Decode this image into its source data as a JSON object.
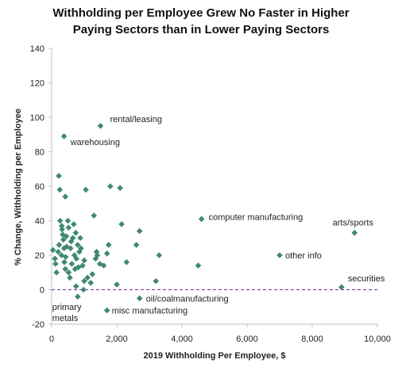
{
  "chart_data": {
    "type": "scatter",
    "title_lines": [
      "Withholding per Employee Grew No Faster in Higher",
      "Paying Sectors than in Lower Paying Sectors"
    ],
    "xlabel": "2019 Withholding  Per Employee, $",
    "ylabel": "% Change, Withholding per Employee",
    "xlim": [
      0,
      10000
    ],
    "ylim": [
      -20,
      140
    ],
    "xticks": [
      0,
      2000,
      4000,
      6000,
      8000,
      10000
    ],
    "xtick_labels": [
      "0",
      "2,000",
      "4,000",
      "6,000",
      "8,000",
      "10,000"
    ],
    "yticks": [
      -20,
      0,
      20,
      40,
      60,
      80,
      100,
      120,
      140
    ],
    "ytick_labels": [
      "-20",
      "0",
      "20",
      "40",
      "60",
      "80",
      "100",
      "120",
      "140"
    ],
    "grid": false,
    "reference_line": {
      "y": 0,
      "style": "dashed",
      "color": "#7030a0"
    },
    "marker_color": "#3f8a6c",
    "points": [
      [
        1500,
        95
      ],
      [
        380,
        89
      ],
      [
        220,
        66
      ],
      [
        250,
        58
      ],
      [
        420,
        54
      ],
      [
        1050,
        58
      ],
      [
        1800,
        60
      ],
      [
        2100,
        59
      ],
      [
        1300,
        43
      ],
      [
        4600,
        41
      ],
      [
        9300,
        33
      ],
      [
        7000,
        20
      ],
      [
        8900,
        1.5
      ],
      [
        2700,
        -5
      ],
      [
        1700,
        -12
      ],
      [
        4500,
        14
      ],
      [
        3200,
        5
      ],
      [
        3300,
        20
      ],
      [
        2600,
        26
      ],
      [
        2700,
        34
      ],
      [
        2150,
        38
      ],
      [
        1750,
        26
      ],
      [
        1700,
        21
      ],
      [
        1600,
        14
      ],
      [
        1400,
        20
      ],
      [
        1380,
        22
      ],
      [
        1350,
        18
      ],
      [
        1480,
        15
      ],
      [
        1250,
        9
      ],
      [
        1200,
        4
      ],
      [
        1100,
        7
      ],
      [
        1000,
        17
      ],
      [
        950,
        14
      ],
      [
        1000,
        5
      ],
      [
        980,
        0
      ],
      [
        800,
        -4
      ],
      [
        750,
        2
      ],
      [
        40,
        23
      ],
      [
        100,
        18
      ],
      [
        120,
        15
      ],
      [
        150,
        10
      ],
      [
        200,
        22
      ],
      [
        230,
        26
      ],
      [
        260,
        40
      ],
      [
        300,
        20
      ],
      [
        320,
        35
      ],
      [
        340,
        32
      ],
      [
        360,
        29
      ],
      [
        380,
        24
      ],
      [
        390,
        16
      ],
      [
        420,
        12
      ],
      [
        430,
        19
      ],
      [
        460,
        25
      ],
      [
        500,
        40
      ],
      [
        520,
        10
      ],
      [
        560,
        7
      ],
      [
        580,
        24
      ],
      [
        600,
        28
      ],
      [
        620,
        15
      ],
      [
        650,
        30
      ],
      [
        680,
        38
      ],
      [
        700,
        20
      ],
      [
        720,
        12
      ],
      [
        740,
        33
      ],
      [
        760,
        18
      ],
      [
        800,
        26
      ],
      [
        820,
        13
      ],
      [
        850,
        22
      ],
      [
        880,
        30
      ],
      [
        900,
        24
      ],
      [
        520,
        36
      ],
      [
        310,
        37
      ],
      [
        450,
        31
      ],
      [
        2000,
        3
      ],
      [
        2300,
        16
      ]
    ],
    "annotations": [
      {
        "text": "rental/leasing",
        "x": 1500,
        "y": 95
      },
      {
        "text": "warehousing",
        "x": 380,
        "y": 89
      },
      {
        "text": "computer manufacturing",
        "x": 4600,
        "y": 41
      },
      {
        "text": "arts/sports",
        "x": 9300,
        "y": 33
      },
      {
        "text": "other info",
        "x": 7000,
        "y": 20
      },
      {
        "text": "securities",
        "x": 8900,
        "y": 1.5
      },
      {
        "text": "oil/coalmanufacturing",
        "x": 2700,
        "y": -5
      },
      {
        "text": "misc manufacturing",
        "x": 1700,
        "y": -12
      },
      {
        "text": "primary",
        "x": 800,
        "y": -4
      },
      {
        "text": "metals",
        "x": 800,
        "y": -4
      }
    ]
  }
}
